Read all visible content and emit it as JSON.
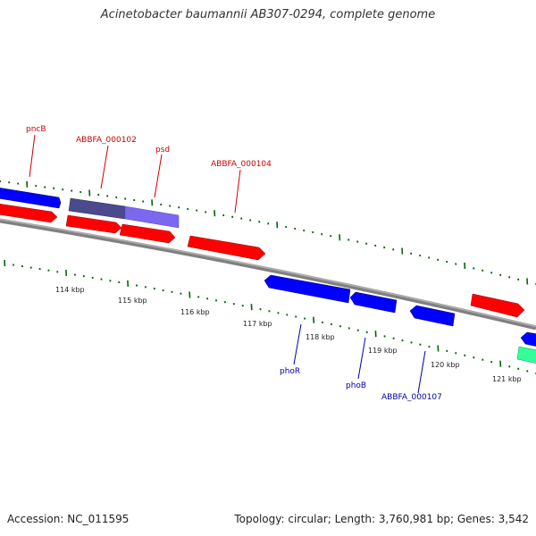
{
  "title": "Acinetobacter baumannii AB307-0294, complete genome",
  "footer": {
    "accession": "Accession: NC_011595",
    "stats": "Topology: circular; Length: 3,760,981 bp; Genes: 3,542"
  },
  "colors": {
    "forward_gene": "#ff0000",
    "reverse_gene": "#0000ff",
    "highlight_gene_dark": "#4a4a8c",
    "highlight_gene_light": "#7b68ee",
    "green_gene": "#33ff99",
    "backbone": "#808080",
    "ticks": "#006600",
    "label_forward": "#cc0000",
    "label_reverse": "#0000aa"
  },
  "scale_labels": [
    "114 kbp",
    "115 kbp",
    "116 kbp",
    "117 kbp",
    "118 kbp",
    "119 kbp",
    "120 kbp",
    "121 kbp"
  ],
  "gene_labels": {
    "top": [
      "pncB",
      "ABBFA_000102",
      "psd",
      "ABBFA_000104"
    ],
    "bottom": [
      "phoR",
      "phoB",
      "ABBFA_000107"
    ]
  }
}
